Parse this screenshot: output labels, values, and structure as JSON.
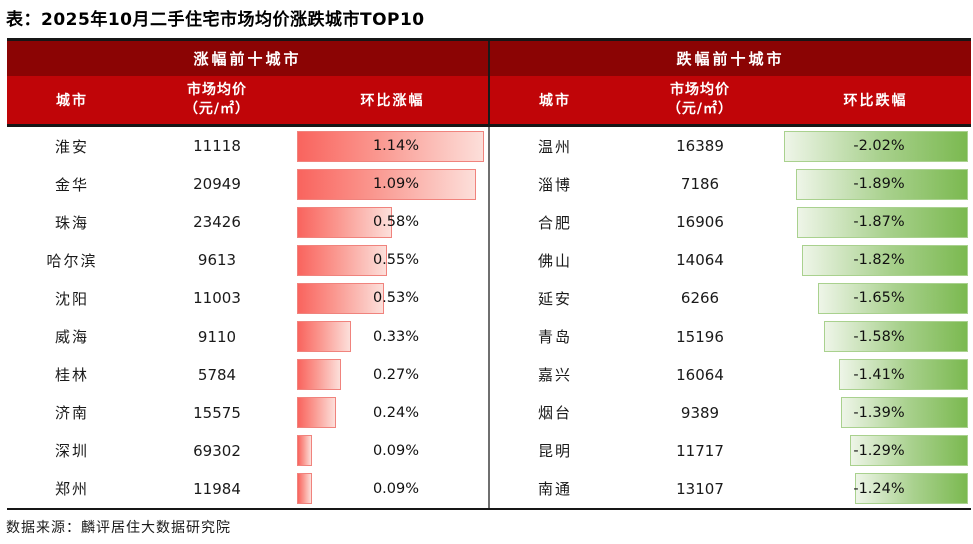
{
  "title": "表：2025年10月二手住宅市场均价涨跌城市TOP10",
  "source": "数据来源：麟评居住大数据研究院",
  "colors": {
    "group_header_bg": "#8b0404",
    "col_header_bg": "#c00508",
    "rise_bar_start": "#f9645e",
    "rise_bar_mid": "#fa968e",
    "rise_bar_end": "#fcdfda",
    "rise_bar_border": "#f0837d",
    "fall_bar_start": "#eef5e8",
    "fall_bar_mid": "#a9d18e",
    "fall_bar_end": "#7bb950",
    "fall_bar_border": "#a9d18e",
    "divider_header": "#1a1a1a",
    "divider_body": "#6f6f6f"
  },
  "left": {
    "group_header": "涨幅前十城市",
    "col_city": "城市",
    "col_price_line1": "市场均价",
    "col_price_line2": "（元/㎡）",
    "col_change": "环比涨幅",
    "rows": [
      {
        "city": "淮安",
        "price": "11118",
        "change": "1.14%",
        "value": 1.14
      },
      {
        "city": "金华",
        "price": "20949",
        "change": "1.09%",
        "value": 1.09
      },
      {
        "city": "珠海",
        "price": "23426",
        "change": "0.58%",
        "value": 0.58
      },
      {
        "city": "哈尔滨",
        "price": "9613",
        "change": "0.55%",
        "value": 0.55
      },
      {
        "city": "沈阳",
        "price": "11003",
        "change": "0.53%",
        "value": 0.53
      },
      {
        "city": "威海",
        "price": "9110",
        "change": "0.33%",
        "value": 0.33
      },
      {
        "city": "桂林",
        "price": "5784",
        "change": "0.27%",
        "value": 0.27
      },
      {
        "city": "济南",
        "price": "15575",
        "change": "0.24%",
        "value": 0.24
      },
      {
        "city": "深圳",
        "price": "69302",
        "change": "0.09%",
        "value": 0.09
      },
      {
        "city": "郑州",
        "price": "11984",
        "change": "0.09%",
        "value": 0.09
      }
    ]
  },
  "right": {
    "group_header": "跌幅前十城市",
    "col_city": "城市",
    "col_price_line1": "市场均价",
    "col_price_line2": "（元/㎡）",
    "col_change": "环比跌幅",
    "rows": [
      {
        "city": "温州",
        "price": "16389",
        "change": "-2.02%",
        "value": -2.02
      },
      {
        "city": "淄博",
        "price": "7186",
        "change": "-1.89%",
        "value": -1.89
      },
      {
        "city": "合肥",
        "price": "16906",
        "change": "-1.87%",
        "value": -1.87
      },
      {
        "city": "佛山",
        "price": "14064",
        "change": "-1.82%",
        "value": -1.82
      },
      {
        "city": "延安",
        "price": "6266",
        "change": "-1.65%",
        "value": -1.65
      },
      {
        "city": "青岛",
        "price": "15196",
        "change": "-1.58%",
        "value": -1.58
      },
      {
        "city": "嘉兴",
        "price": "16064",
        "change": "-1.41%",
        "value": -1.41
      },
      {
        "city": "烟台",
        "price": "9389",
        "change": "-1.39%",
        "value": -1.39
      },
      {
        "city": "昆明",
        "price": "11717",
        "change": "-1.29%",
        "value": -1.29
      },
      {
        "city": "南通",
        "price": "13107",
        "change": "-1.24%",
        "value": -1.24
      }
    ]
  },
  "chart_data": [
    {
      "type": "bar",
      "title": "涨幅前十城市",
      "orientation": "horizontal",
      "categories": [
        "淮安",
        "金华",
        "珠海",
        "哈尔滨",
        "沈阳",
        "威海",
        "桂林",
        "济南",
        "深圳",
        "郑州"
      ],
      "series": [
        {
          "name": "市场均价（元/㎡）",
          "values": [
            11118,
            20949,
            23426,
            9613,
            11003,
            9110,
            5784,
            15575,
            69302,
            11984
          ]
        },
        {
          "name": "环比涨幅(%)",
          "values": [
            1.14,
            1.09,
            0.58,
            0.55,
            0.53,
            0.33,
            0.27,
            0.24,
            0.09,
            0.09
          ]
        }
      ],
      "xlabel": "环比涨幅",
      "ylabel": "城市",
      "xlim": [
        0,
        1.14
      ],
      "grid": false,
      "legend_position": "none"
    },
    {
      "type": "bar",
      "title": "跌幅前十城市",
      "orientation": "horizontal",
      "categories": [
        "温州",
        "淄博",
        "合肥",
        "佛山",
        "延安",
        "青岛",
        "嘉兴",
        "烟台",
        "昆明",
        "南通"
      ],
      "series": [
        {
          "name": "市场均价（元/㎡）",
          "values": [
            16389,
            7186,
            16906,
            14064,
            6266,
            15196,
            16064,
            9389,
            11717,
            13107
          ]
        },
        {
          "name": "环比跌幅(%)",
          "values": [
            -2.02,
            -1.89,
            -1.87,
            -1.82,
            -1.65,
            -1.58,
            -1.41,
            -1.39,
            -1.29,
            -1.24
          ]
        }
      ],
      "xlabel": "环比跌幅",
      "ylabel": "城市",
      "xlim": [
        -2.02,
        0
      ],
      "grid": false,
      "legend_position": "none"
    }
  ]
}
